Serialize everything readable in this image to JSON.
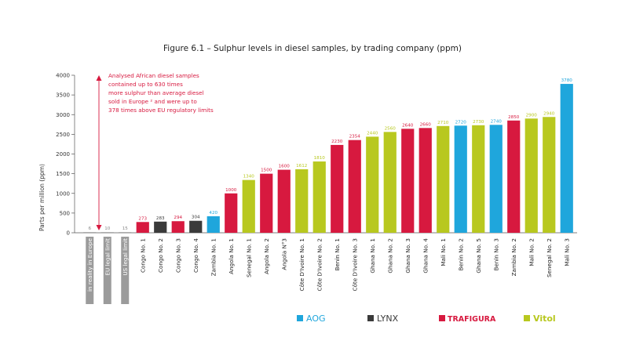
{
  "chart_data": {
    "type": "bar",
    "title": "Figure 6.1 – Sulphur levels in diesel samples, by trading company (ppm)",
    "ylabel": "Parts per million (ppm)",
    "ylim": [
      0,
      4000
    ],
    "yticks": [
      0,
      500,
      1000,
      1500,
      2000,
      2500,
      3000,
      3500,
      4000
    ],
    "grid": false,
    "annotation": [
      "Analysed African diesel samples",
      "contained up to 630 times",
      "more sulphur than average diesel",
      "sold in Europe ² and were up to",
      "378 times above EU regulatory limits"
    ],
    "bars": [
      {
        "category": "in reality in Europe",
        "value": 6,
        "label": "6",
        "group": "reference"
      },
      {
        "category": "EU legal limit",
        "value": 10,
        "label": "10",
        "group": "reference"
      },
      {
        "category": "US legal limit",
        "value": 15,
        "label": "15",
        "group": "reference"
      },
      {
        "category": "Congo No. 1",
        "value": 273,
        "label": "273",
        "group": "Trafigura"
      },
      {
        "category": "Congo No. 2",
        "value": 283,
        "label": "283",
        "group": "Lynx"
      },
      {
        "category": "Congo No. 3",
        "value": 294,
        "label": "294",
        "group": "Trafigura"
      },
      {
        "category": "Congo No. 4",
        "value": 304,
        "label": "304",
        "group": "Lynx"
      },
      {
        "category": "Zambia No. 1",
        "value": 420,
        "label": "420",
        "group": "AOG"
      },
      {
        "category": "Angola No. 1",
        "value": 1000,
        "label": "1000",
        "group": "Trafigura"
      },
      {
        "category": "Senegal No. 1",
        "value": 1340,
        "label": "1340",
        "group": "Vitol"
      },
      {
        "category": "Angola No. 2",
        "value": 1500,
        "label": "1500",
        "group": "Trafigura"
      },
      {
        "category": "Angola N°3",
        "value": 1600,
        "label": "1600",
        "group": "Trafigura"
      },
      {
        "category": "Côte D'Ivoire No. 1",
        "value": 1612,
        "label": "1612",
        "group": "Vitol"
      },
      {
        "category": "Côte D'Ivoire No. 2",
        "value": 1810,
        "label": "1810",
        "group": "Vitol"
      },
      {
        "category": "Benin No. 1",
        "value": 2230,
        "label": "2230",
        "group": "Trafigura"
      },
      {
        "category": "Côte D'Ivoire No. 3",
        "value": 2354,
        "label": "2354",
        "group": "Trafigura"
      },
      {
        "category": "Ghana No. 1",
        "value": 2440,
        "label": "2440",
        "group": "Vitol"
      },
      {
        "category": "Ghana No. 2",
        "value": 2560,
        "label": "2560",
        "group": "Vitol"
      },
      {
        "category": "Ghana No. 3",
        "value": 2640,
        "label": "2640",
        "group": "Trafigura"
      },
      {
        "category": "Ghana No. 4",
        "value": 2660,
        "label": "2660",
        "group": "Trafigura"
      },
      {
        "category": "Mali No. 1",
        "value": 2710,
        "label": "2710",
        "group": "Vitol"
      },
      {
        "category": "Benin No. 2",
        "value": 2720,
        "label": "2720",
        "group": "AOG"
      },
      {
        "category": "Ghana No. 5",
        "value": 2730,
        "label": "2730",
        "group": "Vitol"
      },
      {
        "category": "Benin No. 3",
        "value": 2740,
        "label": "2740",
        "group": "AOG"
      },
      {
        "category": "Zambia No. 2",
        "value": 2850,
        "label": "2850",
        "group": "Trafigura"
      },
      {
        "category": "Mali No. 2",
        "value": 2900,
        "label": "2900",
        "group": "Vitol"
      },
      {
        "category": "Senegal No. 2",
        "value": 2940,
        "label": "2940",
        "group": "Vitol"
      },
      {
        "category": "Mali No. 3",
        "value": 3780,
        "label": "3780",
        "group": "AOG"
      }
    ],
    "legend": [
      {
        "name": "AOG",
        "color": "#1fa6dc"
      },
      {
        "name": "LYNX",
        "color": "#3a3a3a"
      },
      {
        "name": "TRAFIGURA",
        "color": "#d7193f"
      },
      {
        "name": "Vitol",
        "color": "#b8c81f"
      }
    ],
    "legend_placement": "bottom",
    "colors": {
      "reference": "#9b9b9b",
      "AOG": "#1fa6dc",
      "Lynx": "#3a3a3a",
      "Trafigura": "#d7193f",
      "Vitol": "#b8c81f"
    }
  }
}
